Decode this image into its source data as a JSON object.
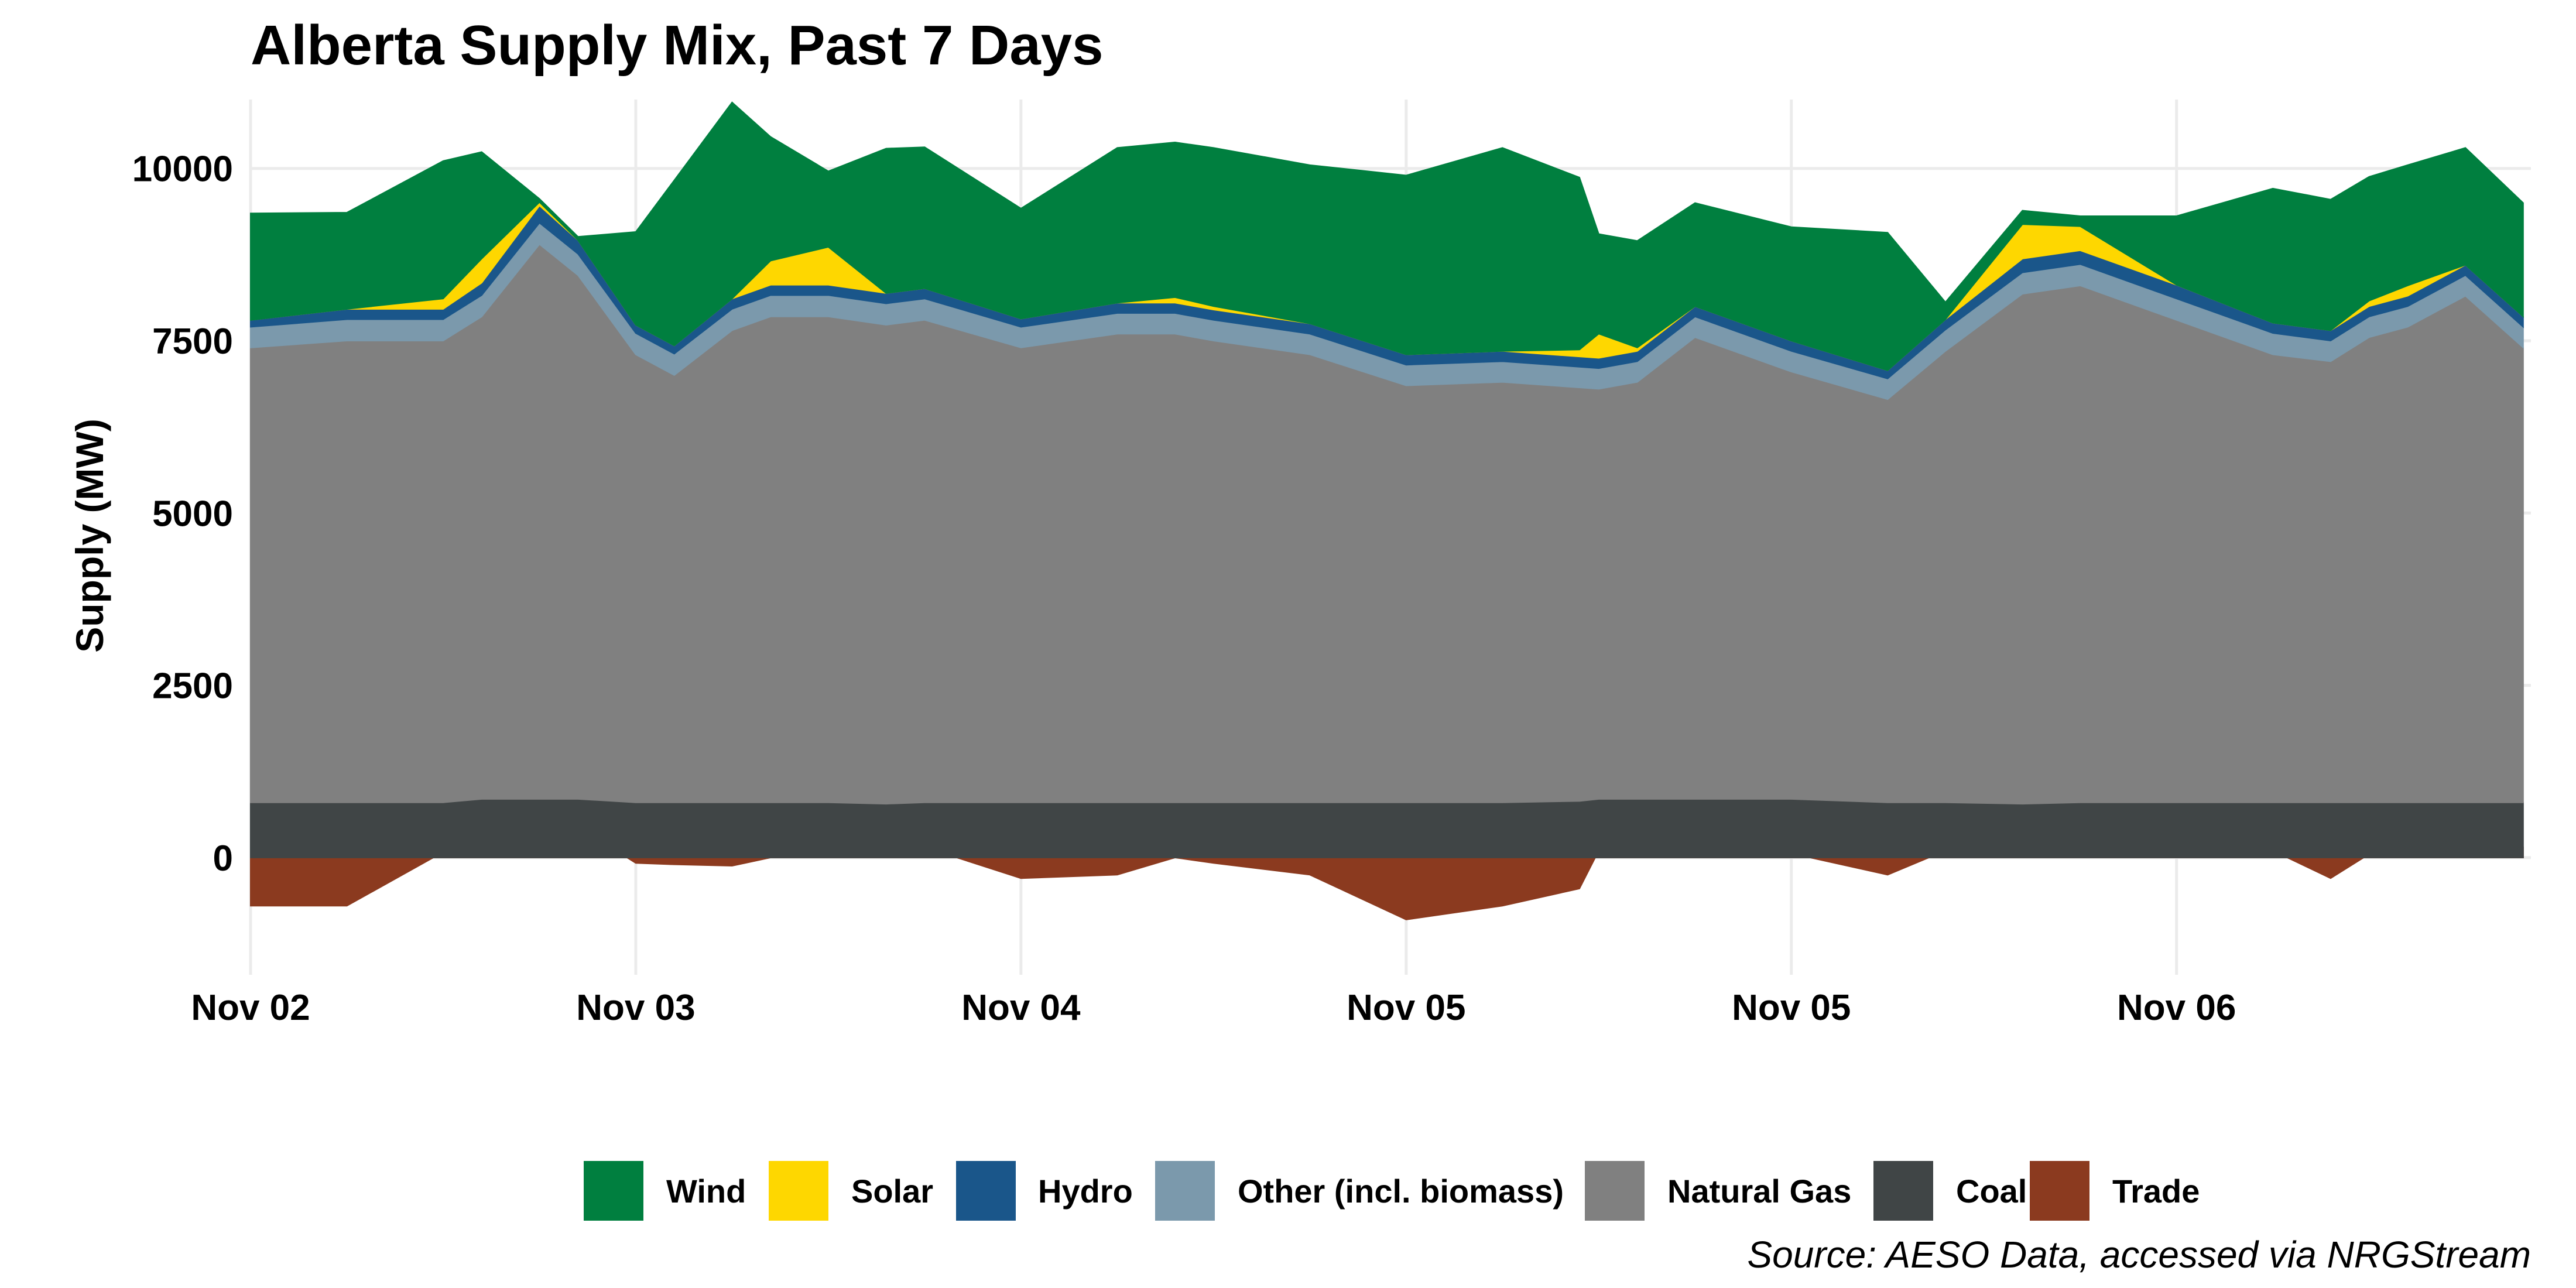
{
  "chart_data": {
    "type": "area",
    "stacked": true,
    "title": "Alberta Supply Mix, Past 7 Days",
    "ylabel": "Supply (MW)",
    "xlabel": "",
    "ylim": [
      -1700,
      11000
    ],
    "y_ticks": [
      0,
      2500,
      5000,
      7500,
      10000
    ],
    "x_tick_labels": [
      "Nov 02",
      "Nov 03",
      "Nov 04",
      "Nov 05",
      "Nov 05",
      "Nov 06"
    ],
    "x_tick_days": [
      0,
      1,
      2,
      3,
      4,
      5
    ],
    "x_range_days": [
      0,
      5.92
    ],
    "grid": true,
    "legend_position": "bottom",
    "caption": "Source: AESO Data, accessed via NRGStream",
    "colors": {
      "Wind": "#007f3f",
      "Solar": "#fed700",
      "Hydro": "#1a568a",
      "Other (incl. biomass)": "#7b99ac",
      "Natural Gas": "#808080",
      "Coal": "#404546",
      "Trade": "#8b3a1f"
    },
    "legend": [
      "Wind",
      "Solar",
      "Hydro",
      "Other (incl. biomass)",
      "Natural Gas",
      "Coal",
      "Trade"
    ],
    "x_days": [
      0,
      0.25,
      0.5,
      0.6,
      0.75,
      0.85,
      1.0,
      1.1,
      1.25,
      1.35,
      1.5,
      1.65,
      1.75,
      2.0,
      2.25,
      2.4,
      2.5,
      2.75,
      3.0,
      3.25,
      3.45,
      3.5,
      3.6,
      3.75,
      4.0,
      4.25,
      4.4,
      4.6,
      4.75,
      5.0,
      5.25,
      5.4,
      5.5,
      5.6,
      5.75,
      5.9
    ],
    "series": [
      {
        "name": "Trade",
        "values": [
          -700,
          -700,
          80,
          150,
          550,
          450,
          -80,
          -100,
          -120,
          0,
          80,
          200,
          150,
          -300,
          -250,
          0,
          -80,
          -250,
          -900,
          -700,
          -450,
          100,
          80,
          60,
          60,
          -250,
          100,
          380,
          420,
          400,
          100,
          -300,
          50,
          120,
          200,
          150
        ]
      },
      {
        "name": "Coal",
        "values": [
          800,
          800,
          800,
          850,
          850,
          850,
          800,
          800,
          800,
          800,
          800,
          780,
          800,
          800,
          800,
          800,
          800,
          800,
          800,
          800,
          820,
          850,
          850,
          850,
          850,
          800,
          800,
          780,
          800,
          800,
          800,
          800,
          800,
          800,
          800,
          800
        ]
      },
      {
        "name": "Natural Gas",
        "values": [
          6600,
          6700,
          6700,
          7000,
          8050,
          7600,
          6500,
          6200,
          6850,
          7050,
          7050,
          6950,
          7000,
          6600,
          6800,
          6800,
          6700,
          6500,
          6050,
          6100,
          6000,
          5950,
          6050,
          6700,
          6200,
          5850,
          6550,
          7400,
          7500,
          7000,
          6500,
          6400,
          6750,
          6900,
          7350,
          6600
        ]
      },
      {
        "name": "Other (incl. biomass)",
        "values": [
          300,
          310,
          310,
          310,
          310,
          310,
          310,
          310,
          310,
          310,
          310,
          310,
          310,
          300,
          300,
          300,
          300,
          300,
          300,
          300,
          300,
          300,
          300,
          300,
          300,
          300,
          310,
          310,
          310,
          310,
          310,
          300,
          300,
          300,
          300,
          300
        ]
      },
      {
        "name": "Hydro",
        "values": [
          100,
          150,
          150,
          180,
          250,
          200,
          120,
          120,
          150,
          150,
          150,
          150,
          150,
          120,
          150,
          150,
          150,
          150,
          150,
          150,
          150,
          150,
          150,
          150,
          150,
          120,
          150,
          200,
          200,
          200,
          150,
          150,
          150,
          150,
          150,
          150
        ]
      },
      {
        "name": "Solar",
        "values": [
          0,
          0,
          150,
          350,
          50,
          0,
          0,
          0,
          0,
          350,
          550,
          0,
          0,
          0,
          0,
          80,
          50,
          0,
          0,
          0,
          100,
          350,
          50,
          0,
          0,
          0,
          0,
          500,
          350,
          0,
          0,
          0,
          80,
          150,
          0,
          0
        ]
      },
      {
        "name": "Wind",
        "values": [
          1550,
          1400,
          2000,
          1550,
          50,
          50,
          1350,
          2400,
          2850,
          1800,
          1100,
          2100,
          2050,
          1600,
          2250,
          2250,
          2300,
          2300,
          2600,
          2950,
          2500,
          1450,
          1550,
          1500,
          1650,
          2000,
          250,
          200,
          150,
          1000,
          1950,
          1900,
          1800,
          1750,
          1700,
          1650
        ]
      }
    ]
  }
}
